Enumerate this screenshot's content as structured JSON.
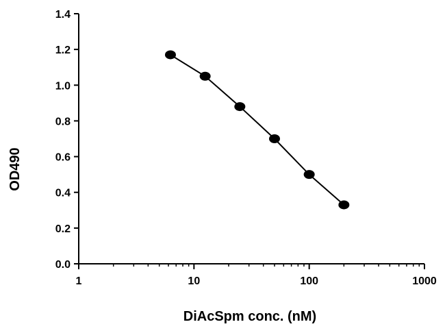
{
  "chart_data": {
    "type": "scatter",
    "xlabel": "DiAcSpm conc. (nM)",
    "ylabel": "OD490",
    "x_scale": "log",
    "xlim": [
      1,
      1000
    ],
    "ylim": [
      0,
      1.4
    ],
    "x_ticks": [
      "1",
      "10",
      "100",
      "1000"
    ],
    "y_ticks": [
      "0.0",
      "0.2",
      "0.4",
      "0.6",
      "0.8",
      "1.0",
      "1.2",
      "1.4"
    ],
    "grid": false,
    "series": [
      {
        "x": [
          6.25,
          12.5,
          25,
          50,
          100,
          200
        ],
        "y": [
          1.17,
          1.05,
          0.88,
          0.7,
          0.5,
          0.33
        ]
      }
    ],
    "colors": {
      "marker": "#000000",
      "line": "#000000",
      "axis": "#000000"
    }
  }
}
